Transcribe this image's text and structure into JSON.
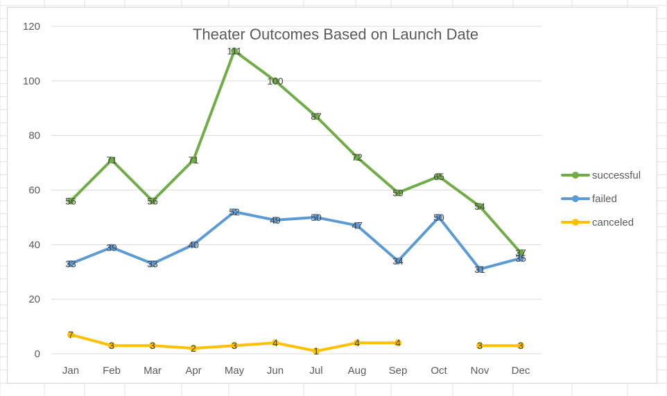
{
  "chart_data": {
    "type": "line",
    "title": "Theater Outcomes Based on Launch Date",
    "xlabel": "",
    "ylabel": "",
    "categories": [
      "Jan",
      "Feb",
      "Mar",
      "Apr",
      "May",
      "Jun",
      "Jul",
      "Aug",
      "Sep",
      "Oct",
      "Nov",
      "Dec"
    ],
    "ylim": [
      0,
      120
    ],
    "yticks": [
      0,
      20,
      40,
      60,
      80,
      100,
      120
    ],
    "grid": true,
    "legend_position": "right",
    "series": [
      {
        "name": "successful",
        "color": "#70ad47",
        "values": [
          56,
          71,
          56,
          71,
          111,
          100,
          87,
          72,
          59,
          65,
          54,
          37
        ]
      },
      {
        "name": "failed",
        "color": "#5b9bd5",
        "values": [
          33,
          39,
          33,
          40,
          52,
          49,
          50,
          47,
          34,
          50,
          31,
          35
        ]
      },
      {
        "name": "canceled",
        "color": "#ffc000",
        "values": [
          7,
          3,
          3,
          2,
          3,
          4,
          1,
          4,
          4,
          null,
          3,
          3
        ]
      }
    ]
  }
}
